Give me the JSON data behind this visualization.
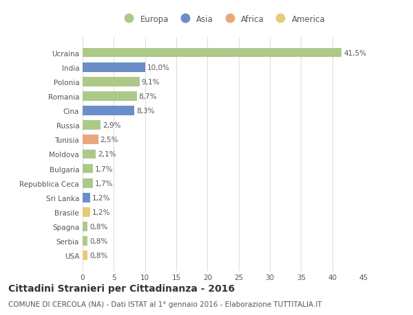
{
  "categories": [
    "USA",
    "Serbia",
    "Spagna",
    "Brasile",
    "Sri Lanka",
    "Repubblica Ceca",
    "Bulgaria",
    "Moldova",
    "Tunisia",
    "Russia",
    "Cina",
    "Romania",
    "Polonia",
    "India",
    "Ucraina"
  ],
  "values": [
    0.8,
    0.8,
    0.8,
    1.2,
    1.2,
    1.7,
    1.7,
    2.1,
    2.5,
    2.9,
    8.3,
    8.7,
    9.1,
    10.0,
    41.5
  ],
  "labels": [
    "0,8%",
    "0,8%",
    "0,8%",
    "1,2%",
    "1,2%",
    "1,7%",
    "1,7%",
    "2,1%",
    "2,5%",
    "2,9%",
    "8,3%",
    "8,7%",
    "9,1%",
    "10,0%",
    "41,5%"
  ],
  "colors": [
    "#e8c87a",
    "#adc98a",
    "#adc98a",
    "#e8c87a",
    "#6b8ec8",
    "#adc98a",
    "#adc98a",
    "#adc98a",
    "#e8a87c",
    "#adc98a",
    "#6b8ec8",
    "#adc98a",
    "#adc98a",
    "#6b8ec8",
    "#adc98a"
  ],
  "continent_colors": {
    "Europa": "#adc98a",
    "Asia": "#6b8ec8",
    "Africa": "#e8a87c",
    "America": "#e8c87a"
  },
  "xlim": [
    0,
    45
  ],
  "xticks": [
    0,
    5,
    10,
    15,
    20,
    25,
    30,
    35,
    40,
    45
  ],
  "title": "Cittadini Stranieri per Cittadinanza - 2016",
  "subtitle": "COMUNE DI CERCOLA (NA) - Dati ISTAT al 1° gennaio 2016 - Elaborazione TUTTITALIA.IT",
  "bg_color": "#ffffff",
  "bar_height": 0.65,
  "grid_color": "#dddddd",
  "text_color": "#555555",
  "title_fontsize": 10,
  "subtitle_fontsize": 7.5,
  "label_fontsize": 7.5,
  "tick_fontsize": 7.5,
  "legend_fontsize": 8.5
}
